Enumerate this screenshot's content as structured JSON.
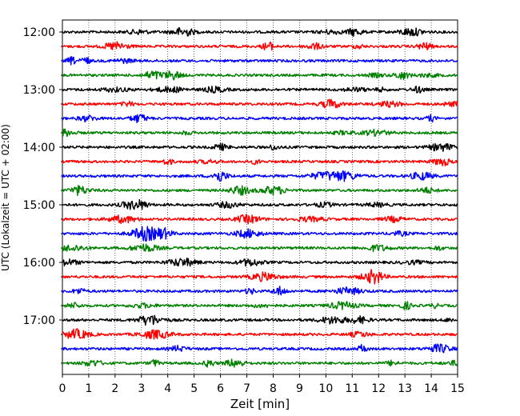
{
  "chart_data": {
    "type": "line",
    "subtype": "helicorder",
    "xlabel": "Zeit  [min]",
    "ylabel": "UTC (Lokalzeit = UTC + 02:00)",
    "xlim": [
      0,
      15
    ],
    "x_ticks": [
      "0",
      "1",
      "2",
      "3",
      "4",
      "5",
      "6",
      "7",
      "8",
      "9",
      "10",
      "11",
      "12",
      "13",
      "14",
      "15"
    ],
    "y_tick_labels": [
      "12:00",
      "13:00",
      "14:00",
      "15:00",
      "16:00",
      "17:00"
    ],
    "grid": "vertical dotted at each minute",
    "trace_minutes": 15,
    "trace_colors": [
      "#000000",
      "#ff0000",
      "#0000ff",
      "#008000"
    ],
    "traces": [
      "12:00",
      "12:15",
      "12:30",
      "12:45",
      "13:00",
      "13:15",
      "13:30",
      "13:45",
      "14:00",
      "14:15",
      "14:30",
      "14:45",
      "15:00",
      "15:15",
      "15:30",
      "15:45",
      "16:00",
      "16:15",
      "16:30",
      "16:45",
      "17:00",
      "17:15",
      "17:30",
      "17:45"
    ]
  }
}
